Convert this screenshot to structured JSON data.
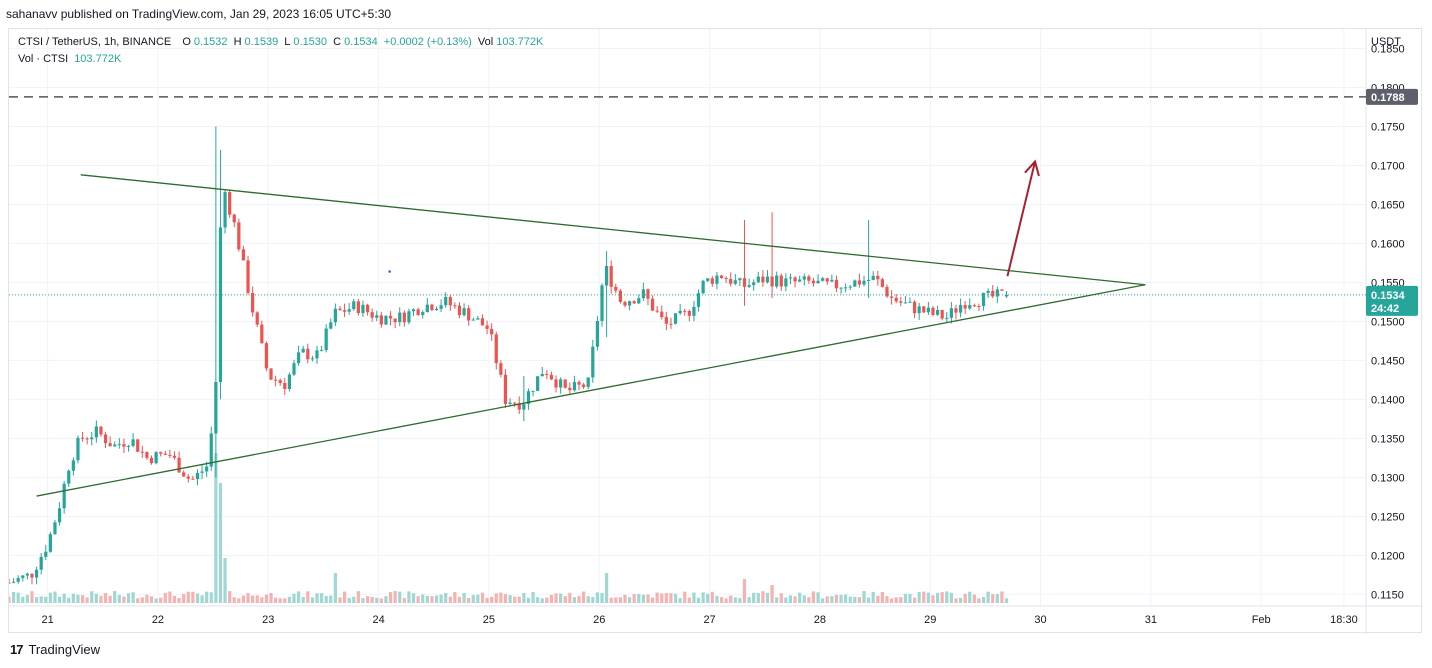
{
  "header": {
    "published_by": "sahanavv published on TradingView.com, Jan 29, 2023 16:05 UTC+5:30"
  },
  "legend": {
    "symbol": "CTSI / TetherUS, 1h, BINANCE",
    "o_label": "O",
    "o_value": "0.1532",
    "h_label": "H",
    "h_value": "0.1539",
    "l_label": "L",
    "l_value": "0.1530",
    "c_label": "C",
    "c_value": "0.1534",
    "change": "+0.0002 (+0.13%)",
    "vol_label": "Vol",
    "vol_value": "103.772K",
    "vol_series_label": "Vol · CTSI",
    "vol_series_value": "103.772K"
  },
  "footer": {
    "brand": "TradingView",
    "logo_glyph": "17"
  },
  "colors": {
    "up": "#26a69a",
    "down": "#ef5350",
    "up_volume": "#9fd8d2",
    "down_volume": "#f5b2b0",
    "triangle": "#2e6b2e",
    "arrow": "#a8202e",
    "resistance": "#555555",
    "last_price_tag": "#26a69a",
    "resistance_tag": "#5d606b"
  },
  "chart_data": {
    "type": "candlestick",
    "symbol": "CTSI / TetherUS",
    "interval": "1h",
    "exchange": "BINANCE",
    "y_axis_unit": "USDT",
    "ylim": [
      0.1135,
      0.1875
    ],
    "y_ticks": [
      "0.1150",
      "0.1200",
      "0.1250",
      "0.1300",
      "0.1350",
      "0.1400",
      "0.1450",
      "0.1500",
      "0.1550",
      "0.1600",
      "0.1650",
      "0.1700",
      "0.1750",
      "0.1800",
      "0.1850"
    ],
    "x_ticks": [
      {
        "label": "21",
        "pos": 21.0
      },
      {
        "label": "22",
        "pos": 22.0
      },
      {
        "label": "23",
        "pos": 23.0
      },
      {
        "label": "24",
        "pos": 24.0
      },
      {
        "label": "25",
        "pos": 25.0
      },
      {
        "label": "26",
        "pos": 26.0
      },
      {
        "label": "27",
        "pos": 27.0
      },
      {
        "label": "28",
        "pos": 28.0
      },
      {
        "label": "29",
        "pos": 29.0
      },
      {
        "label": "30",
        "pos": 30.0
      },
      {
        "label": "31",
        "pos": 31.0
      },
      {
        "label": "Feb",
        "pos": 32.0
      },
      {
        "label": "18:30",
        "pos": 32.75
      }
    ],
    "x_range": [
      20.65,
      32.95
    ],
    "last_price": {
      "value": 0.1534,
      "label": "0.1534",
      "countdown": "24:42"
    },
    "resistance": {
      "value": 0.1788,
      "label": "0.1788"
    },
    "triangle": {
      "upper": [
        [
          21.3,
          0.1688
        ],
        [
          30.95,
          0.1547
        ]
      ],
      "lower": [
        [
          20.9,
          0.1276
        ],
        [
          30.95,
          0.1547
        ]
      ]
    },
    "breakout_arrow": {
      "from": [
        29.7,
        0.1558
      ],
      "to": [
        29.95,
        0.1705
      ]
    },
    "stray_marker": {
      "x": 24.1,
      "y": 0.1564
    },
    "anchors": [
      [
        20.65,
        0.1165
      ],
      [
        20.85,
        0.1175
      ],
      [
        21.0,
        0.1215
      ],
      [
        21.1,
        0.126
      ],
      [
        21.2,
        0.132
      ],
      [
        21.3,
        0.135
      ],
      [
        21.45,
        0.1358
      ],
      [
        21.6,
        0.134
      ],
      [
        21.75,
        0.135
      ],
      [
        21.9,
        0.1325
      ],
      [
        22.1,
        0.133
      ],
      [
        22.3,
        0.1295
      ],
      [
        22.45,
        0.1315
      ],
      [
        22.52,
        0.14
      ],
      [
        22.58,
        0.168
      ],
      [
        22.7,
        0.162
      ],
      [
        22.85,
        0.152
      ],
      [
        23.0,
        0.143
      ],
      [
        23.15,
        0.142
      ],
      [
        23.3,
        0.146
      ],
      [
        23.45,
        0.1455
      ],
      [
        23.6,
        0.151
      ],
      [
        23.8,
        0.152
      ],
      [
        24.0,
        0.1505
      ],
      [
        24.2,
        0.1505
      ],
      [
        24.4,
        0.152
      ],
      [
        24.6,
        0.1525
      ],
      [
        24.8,
        0.151
      ],
      [
        25.0,
        0.149
      ],
      [
        25.15,
        0.14
      ],
      [
        25.3,
        0.1395
      ],
      [
        25.5,
        0.144
      ],
      [
        25.7,
        0.141
      ],
      [
        25.9,
        0.142
      ],
      [
        26.05,
        0.157
      ],
      [
        26.2,
        0.1525
      ],
      [
        26.4,
        0.1535
      ],
      [
        26.6,
        0.1495
      ],
      [
        26.8,
        0.151
      ],
      [
        26.95,
        0.155
      ],
      [
        27.1,
        0.156
      ],
      [
        27.3,
        0.1545
      ],
      [
        27.5,
        0.1555
      ],
      [
        27.7,
        0.155
      ],
      [
        27.9,
        0.155
      ],
      [
        28.1,
        0.1545
      ],
      [
        28.3,
        0.155
      ],
      [
        28.5,
        0.1555
      ],
      [
        28.65,
        0.153
      ],
      [
        28.8,
        0.152
      ],
      [
        29.0,
        0.151
      ],
      [
        29.15,
        0.1505
      ],
      [
        29.3,
        0.1525
      ],
      [
        29.5,
        0.153
      ],
      [
        29.7,
        0.1534
      ]
    ],
    "spikes": [
      {
        "x": 22.53,
        "high": 0.175,
        "low": 0.13
      },
      {
        "x": 22.58,
        "high": 0.172,
        "low": 0.14
      },
      {
        "x": 27.3,
        "high": 0.163,
        "low": 0.152
      },
      {
        "x": 27.55,
        "high": 0.164,
        "low": 0.153
      },
      {
        "x": 28.45,
        "high": 0.163,
        "low": 0.153
      },
      {
        "x": 26.05,
        "high": 0.159,
        "low": 0.148
      },
      {
        "x": 25.3,
        "high": 0.143,
        "low": 0.1372
      }
    ],
    "volume_spikes": [
      {
        "x": 22.52,
        "v": 1.0
      },
      {
        "x": 22.55,
        "v": 0.8
      },
      {
        "x": 22.6,
        "v": 0.3
      },
      {
        "x": 23.6,
        "v": 0.2
      },
      {
        "x": 26.05,
        "v": 0.2
      },
      {
        "x": 27.3,
        "v": 0.16
      },
      {
        "x": 27.55,
        "v": 0.12
      }
    ]
  }
}
